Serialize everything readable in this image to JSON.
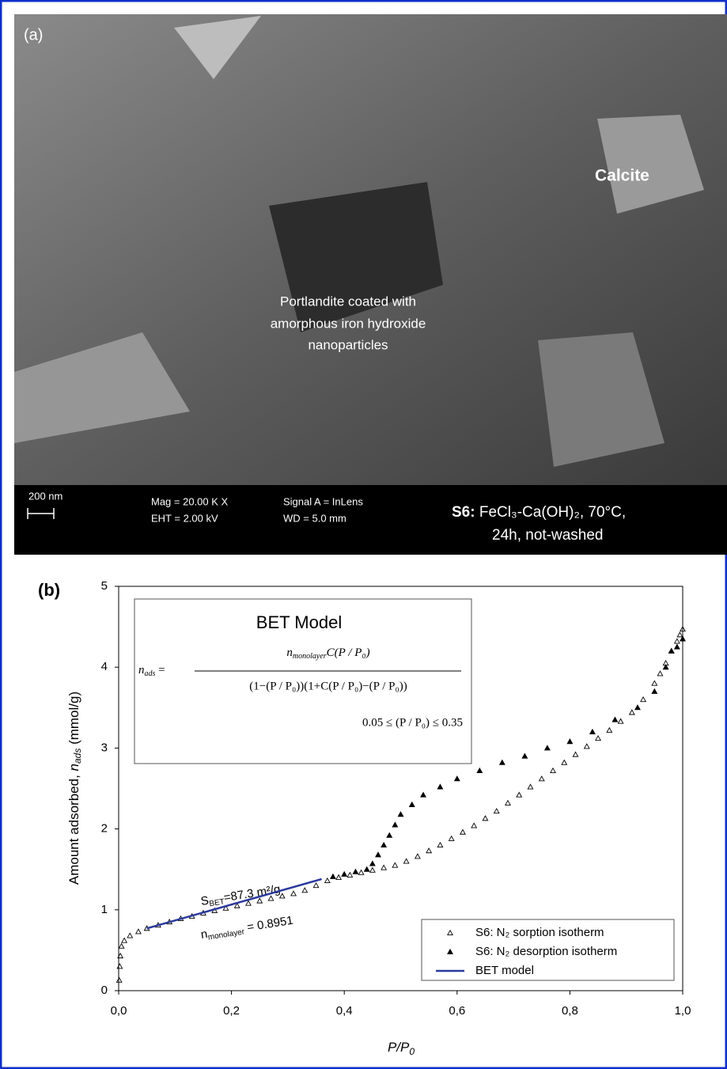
{
  "panel_a": {
    "label": "(a)",
    "calcite": "Calcite",
    "portlandite": [
      "Portlandite coated with",
      "amorphous iron hydroxide",
      "nanoparticles"
    ],
    "scale": "200 nm",
    "mag": "Mag = 20.00 K X",
    "eht": "EHT = 2.00 kV",
    "signal": "Signal A = InLens",
    "wd": "WD = 5.0 mm",
    "sample": "S6:",
    "conditions": "FeCl₃-Ca(OH)₂, 70°C,",
    "conditions2": "24h, not-washed"
  },
  "chart_data": {
    "type": "scatter",
    "panel_label": "(b)",
    "xlabel": [
      "P/P",
      "0"
    ],
    "ylabel": [
      "Amount adsorbed, ",
      "n",
      "ads",
      " (mmol/g)"
    ],
    "xlim": [
      0,
      1
    ],
    "ylim": [
      0,
      5
    ],
    "xticks": [
      {
        "value": 0,
        "label": "0,0"
      },
      {
        "value": 0.2,
        "label": "0,2"
      },
      {
        "value": 0.4,
        "label": "0,4"
      },
      {
        "value": 0.6,
        "label": "0,6"
      },
      {
        "value": 0.8,
        "label": "0,8"
      },
      {
        "value": 1,
        "label": "1,0"
      }
    ],
    "yticks": [
      0,
      1,
      2,
      3,
      4,
      5
    ],
    "inset": {
      "title": "BET Model",
      "lhs": [
        "n",
        "ads",
        " ="
      ],
      "numerator": [
        "n",
        "monolayer",
        "C(P / P₀)"
      ],
      "denominator": "(1−(P / P₀))(1+C(P / P₀)−(P / P₀))",
      "condition": "0.05 ≤ (P / P₀) ≤ 0.35"
    },
    "annotations": {
      "sbet": [
        "S",
        "BET",
        "=87.3 m²/g"
      ],
      "nmono": [
        "n",
        "monolayer",
        " = 0.8951"
      ]
    },
    "legend": "lower right",
    "series": [
      {
        "name": "S6: N₂ sorption isotherm",
        "color": "#000000",
        "marker": "open-triangle",
        "x": [
          0.001,
          0.002,
          0.003,
          0.005,
          0.01,
          0.02,
          0.035,
          0.05,
          0.07,
          0.09,
          0.11,
          0.13,
          0.15,
          0.17,
          0.19,
          0.21,
          0.23,
          0.25,
          0.27,
          0.29,
          0.31,
          0.33,
          0.35,
          0.37,
          0.39,
          0.41,
          0.43,
          0.45,
          0.47,
          0.49,
          0.51,
          0.53,
          0.55,
          0.57,
          0.59,
          0.61,
          0.63,
          0.65,
          0.67,
          0.69,
          0.71,
          0.73,
          0.75,
          0.77,
          0.79,
          0.81,
          0.83,
          0.85,
          0.87,
          0.89,
          0.91,
          0.93,
          0.95,
          0.96,
          0.97,
          0.98,
          0.99,
          0.995,
          1.0
        ],
        "values": [
          0.13,
          0.3,
          0.43,
          0.55,
          0.62,
          0.68,
          0.73,
          0.77,
          0.81,
          0.85,
          0.89,
          0.92,
          0.96,
          0.99,
          1.02,
          1.05,
          1.08,
          1.11,
          1.14,
          1.17,
          1.2,
          1.24,
          1.3,
          1.36,
          1.4,
          1.43,
          1.46,
          1.49,
          1.52,
          1.55,
          1.6,
          1.66,
          1.73,
          1.8,
          1.88,
          1.96,
          2.04,
          2.13,
          2.22,
          2.32,
          2.42,
          2.52,
          2.62,
          2.72,
          2.82,
          2.92,
          3.02,
          3.12,
          3.22,
          3.33,
          3.44,
          3.6,
          3.8,
          3.92,
          4.05,
          4.2,
          4.32,
          4.4,
          4.47
        ]
      },
      {
        "name": "S6: N₂ desorption isotherm",
        "color": "#000000",
        "marker": "filled-triangle",
        "x": [
          1.0,
          0.99,
          0.98,
          0.97,
          0.95,
          0.92,
          0.88,
          0.84,
          0.8,
          0.76,
          0.72,
          0.68,
          0.64,
          0.6,
          0.57,
          0.54,
          0.52,
          0.5,
          0.49,
          0.48,
          0.47,
          0.46,
          0.45,
          0.44,
          0.42,
          0.4,
          0.38
        ],
        "values": [
          4.35,
          4.25,
          4.2,
          4.0,
          3.7,
          3.5,
          3.35,
          3.2,
          3.08,
          3.0,
          2.9,
          2.82,
          2.72,
          2.62,
          2.52,
          2.42,
          2.3,
          2.18,
          2.05,
          1.92,
          1.8,
          1.68,
          1.57,
          1.5,
          1.47,
          1.44,
          1.41
        ]
      },
      {
        "name": "BET model",
        "color": "#2b3a9c",
        "marker": "line",
        "x": [
          0.05,
          0.36
        ],
        "values": [
          0.77,
          1.38
        ]
      }
    ]
  }
}
